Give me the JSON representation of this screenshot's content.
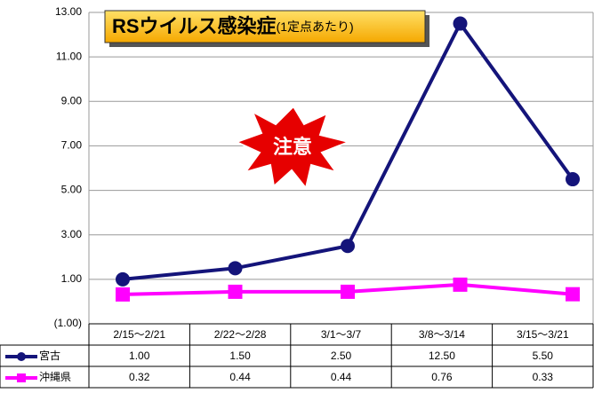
{
  "chart_data": {
    "type": "line",
    "title": "RSウイルス感染症",
    "subtitle": "(1定点あたり)",
    "annotation": "注意",
    "categories": [
      "2/15～2/21",
      "2/22～2/28",
      "3/1～3/7",
      "3/8～3/14",
      "3/15～3/21"
    ],
    "series": [
      {
        "name": "宮古",
        "color": "#14147a",
        "marker": "circle",
        "values": [
          1.0,
          1.5,
          2.5,
          12.5,
          5.5
        ],
        "value_labels": [
          "1.00",
          "1.50",
          "2.50",
          "12.50",
          "5.50"
        ]
      },
      {
        "name": "沖縄県",
        "color": "#ff00ff",
        "marker": "square",
        "values": [
          0.32,
          0.44,
          0.44,
          0.76,
          0.33
        ],
        "value_labels": [
          "0.32",
          "0.44",
          "0.44",
          "0.76",
          "0.33"
        ]
      }
    ],
    "ylim": [
      -1,
      13
    ],
    "yticks": [
      {
        "value": -1,
        "label": "(1.00)"
      },
      {
        "value": 1,
        "label": "1.00"
      },
      {
        "value": 3,
        "label": "3.00"
      },
      {
        "value": 5,
        "label": "5.00"
      },
      {
        "value": 7,
        "label": "7.00"
      },
      {
        "value": 9,
        "label": "9.00"
      },
      {
        "value": 11,
        "label": "11.00"
      },
      {
        "value": 13,
        "label": "13.00"
      }
    ],
    "grid": true
  }
}
